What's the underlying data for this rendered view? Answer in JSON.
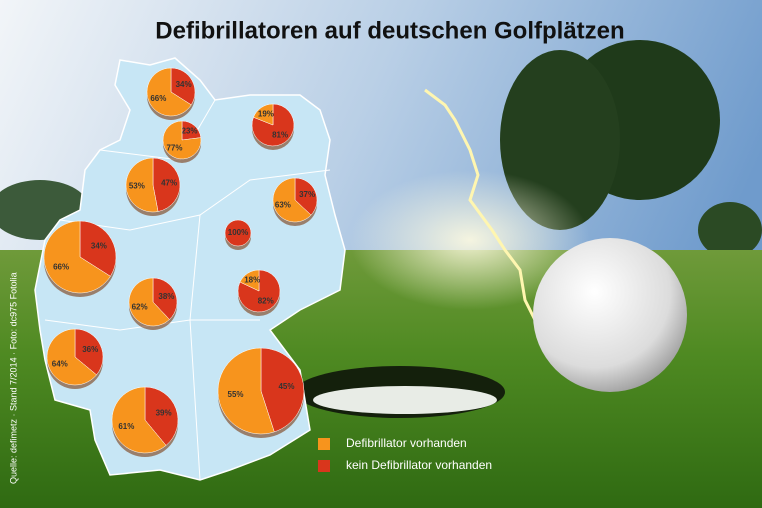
{
  "title": "Defibrillatoren auf deutschen Golfplätzen",
  "source": "Quelle: defimetz · Stand 7/2014 · Foto: dc975 Fotolia",
  "legend": {
    "labels": [
      "Defibrillator vorhanden",
      "kein Defibrillator vorhanden"
    ],
    "colors": [
      "#f7941d",
      "#d9361c"
    ]
  },
  "chart_data": [
    {
      "type": "pie",
      "values": [
        66,
        34
      ],
      "value_labels": [
        "66%",
        "34%"
      ],
      "colors": [
        "#f7941d",
        "#d9361c"
      ]
    },
    {
      "type": "pie",
      "values": [
        19,
        81
      ],
      "value_labels": [
        "19%",
        "81%"
      ],
      "colors": [
        "#f7941d",
        "#d9361c"
      ]
    },
    {
      "type": "pie",
      "values": [
        77,
        23
      ],
      "value_labels": [
        "77%",
        "23%"
      ],
      "colors": [
        "#f7941d",
        "#d9361c"
      ]
    },
    {
      "type": "pie",
      "values": [
        53,
        47
      ],
      "value_labels": [
        "53%",
        "47%"
      ],
      "colors": [
        "#f7941d",
        "#d9361c"
      ]
    },
    {
      "type": "pie",
      "values": [
        63,
        37
      ],
      "value_labels": [
        "63%",
        "37%"
      ],
      "colors": [
        "#f7941d",
        "#d9361c"
      ]
    },
    {
      "type": "pie",
      "values": [
        100
      ],
      "value_labels": [
        "100%"
      ],
      "colors": [
        "#d9361c"
      ]
    },
    {
      "type": "pie",
      "values": [
        66,
        34
      ],
      "value_labels": [
        "66%",
        "34%"
      ],
      "colors": [
        "#f7941d",
        "#d9361c"
      ]
    },
    {
      "type": "pie",
      "values": [
        18,
        82
      ],
      "value_labels": [
        "18%",
        "82%"
      ],
      "colors": [
        "#f7941d",
        "#d9361c"
      ]
    },
    {
      "type": "pie",
      "values": [
        62,
        38
      ],
      "value_labels": [
        "62%",
        "38%"
      ],
      "colors": [
        "#f7941d",
        "#d9361c"
      ]
    },
    {
      "type": "pie",
      "values": [
        64,
        36
      ],
      "value_labels": [
        "64%",
        "36%"
      ],
      "colors": [
        "#f7941d",
        "#d9361c"
      ]
    },
    {
      "type": "pie",
      "values": [
        55,
        45
      ],
      "value_labels": [
        "55%",
        "45%"
      ],
      "colors": [
        "#f7941d",
        "#d9361c"
      ]
    },
    {
      "type": "pie",
      "values": [
        61,
        39
      ],
      "value_labels": [
        "61%",
        "39%"
      ],
      "colors": [
        "#f7941d",
        "#d9361c"
      ]
    }
  ]
}
